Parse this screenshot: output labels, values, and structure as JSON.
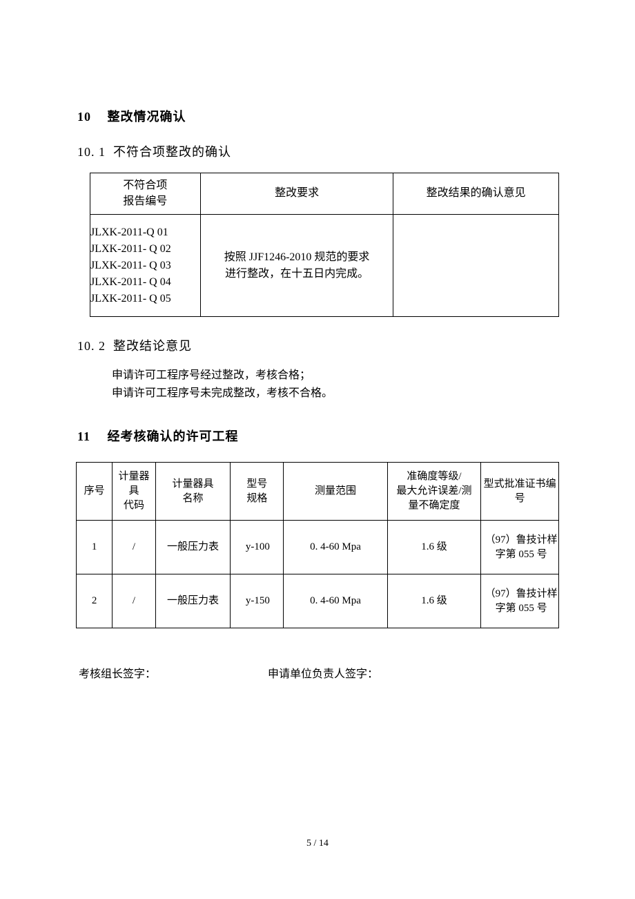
{
  "section10": {
    "number": "10",
    "title": "整改情况确认",
    "sub1": {
      "number": "10. 1",
      "title": "不符合项整改的确认",
      "table": {
        "headers": {
          "col1_line1": "不符合项",
          "col1_line2": "报告编号",
          "col2": "整改要求",
          "col3": "整改结果的确认意见"
        },
        "row": {
          "reports": [
            "JLXK-2011-Q 01",
            "JLXK-2011- Q 02",
            "JLXK-2011- Q 03",
            "JLXK-2011- Q 04",
            "JLXK-2011- Q 05"
          ],
          "requirement_line1": "按照 JJF1246-2010 规范的要求",
          "requirement_line2": "进行整改，在十五日内完成。",
          "result": ""
        }
      }
    },
    "sub2": {
      "number": "10. 2",
      "title": "整改结论意见",
      "line1": "申请许可工程序号经过整改，考核合格；",
      "line2": "申请许可工程序号未完成整改，考核不合格。"
    }
  },
  "section11": {
    "number": "11",
    "title": "经考核确认的许可工程",
    "table": {
      "headers": {
        "col1": "序号",
        "col2_line1": "计量器具",
        "col2_line2": "代码",
        "col3_line1": "计量器具",
        "col3_line2": "名称",
        "col4_line1": "型号",
        "col4_line2": "规格",
        "col5": "测量范围",
        "col6_line1": "准确度等级/",
        "col6_line2": "最大允许误差/测",
        "col6_line3": "量不确定度",
        "col7_line1": "型式批准证书编",
        "col7_line2": "号"
      },
      "rows": [
        {
          "seq": "1",
          "code": "/",
          "name": "一般压力表",
          "model": "y-100",
          "range": "0. 4-60   Mpa",
          "accuracy": "1.6 级",
          "cert_line1": "（97）鲁技计样",
          "cert_line2": "字第 055 号"
        },
        {
          "seq": "2",
          "code": "/",
          "name": "一般压力表",
          "model": "y-150",
          "range": "0. 4-60   Mpa",
          "accuracy": "1.6 级",
          "cert_line1": "（97）鲁技计样",
          "cert_line2": "字第 055 号"
        }
      ]
    }
  },
  "signatures": {
    "left": "考核组长签字：",
    "right": "申请单位负责人签字："
  },
  "pageNumber": "5  /  14"
}
